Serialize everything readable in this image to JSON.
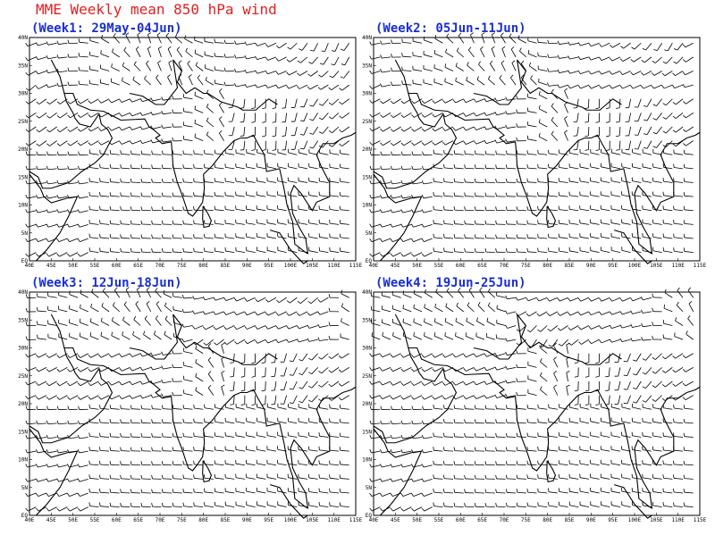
{
  "title": "MME Weekly mean 850 hPa wind",
  "panels": [
    {
      "title": "(Week1: 29May-04Jun)"
    },
    {
      "title": "(Week2: 05Jun-11Jun)"
    },
    {
      "title": "(Week3: 12Jun-18Jun)"
    },
    {
      "title": "(Week4: 19Jun-25Jun)"
    }
  ],
  "x_axis_labels": [
    "40E",
    "45E",
    "50E",
    "55E",
    "60E",
    "65E",
    "70E",
    "75E",
    "80E",
    "85E",
    "90E",
    "95E",
    "100E",
    "105E",
    "110E",
    "115E"
  ],
  "y_axis_labels": [
    "EQ",
    "5N",
    "10N",
    "15N",
    "20N",
    "25N",
    "30N",
    "35N",
    "40N"
  ]
}
